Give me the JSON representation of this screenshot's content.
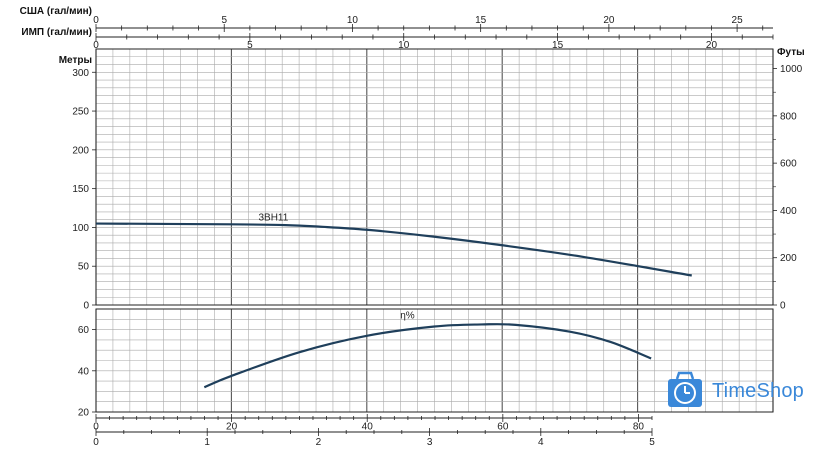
{
  "chart_data": {
    "type": "line",
    "top_axes": [
      {
        "label": "США (гал/мин)",
        "ticks": [
          "0",
          "5",
          "10",
          "15",
          "20",
          "25"
        ]
      },
      {
        "label": "ИМП (гал/мин)",
        "ticks": [
          "0",
          "5",
          "10",
          "15",
          "20"
        ]
      }
    ],
    "head_chart": {
      "ylabel_left": "Метры",
      "ylabel_right": "Футы",
      "y_ticks_left": [
        "0",
        "50",
        "100",
        "150",
        "200",
        "250",
        "300"
      ],
      "y_ticks_right": [
        "0",
        "200",
        "400",
        "600",
        "800",
        "1000"
      ],
      "ylim": [
        0,
        330
      ],
      "series": [
        {
          "name": "3BH11",
          "x": [
            0,
            20,
            28,
            33,
            40,
            50,
            60,
            72,
            88
          ],
          "y": [
            105,
            104,
            103,
            101,
            97,
            88,
            77,
            62,
            38
          ]
        }
      ]
    },
    "efficiency_chart": {
      "y_ticks": [
        "20",
        "40",
        "60"
      ],
      "ylim": [
        20,
        70
      ],
      "series": [
        {
          "name": "η%",
          "x": [
            16,
            20,
            30,
            40,
            50,
            57,
            62,
            70,
            76,
            82
          ],
          "y": [
            32,
            37.5,
            49,
            57,
            61.5,
            62.5,
            62.3,
            59,
            54,
            46
          ]
        }
      ]
    },
    "bottom_axes": [
      {
        "ticks": [
          "0",
          "20",
          "40",
          "60",
          "80"
        ],
        "range": [
          0,
          82
        ]
      },
      {
        "ticks": [
          "0",
          "1",
          "2",
          "3",
          "4",
          "5"
        ],
        "range": [
          0,
          5
        ]
      }
    ],
    "xlim": [
      0,
      100
    ],
    "grid": true
  },
  "logo": {
    "text": "TimeShop",
    "icon": "clock-cart-icon"
  },
  "colors": {
    "curve": "#1f3f5b",
    "grid_minor": "#aaaaaa",
    "grid_major": "#555555",
    "logo": "#3a88d9"
  }
}
